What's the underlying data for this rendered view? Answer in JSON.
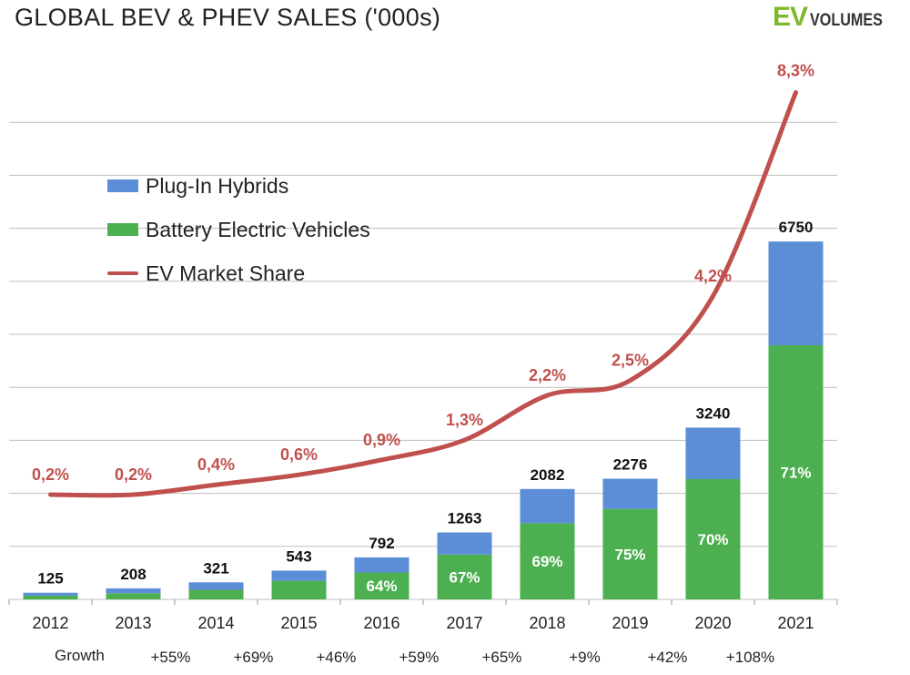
{
  "title": "GLOBAL BEV & PHEV SALES ('000s)",
  "logo": {
    "ev": "EV",
    "volumes": "VOLUMES"
  },
  "colors": {
    "phev": "#5b8ed6",
    "bev": "#4caf50",
    "share": "#c0504d",
    "grid": "#bfbfbf",
    "text": "#111111"
  },
  "legend": [
    {
      "label": "Plug-In Hybrids",
      "kind": "box",
      "color": "#5b8ed6"
    },
    {
      "label": "Battery Electric Vehicles",
      "kind": "box",
      "color": "#4caf50"
    },
    {
      "label": "EV Market Share",
      "kind": "line",
      "color": "#c0504d"
    }
  ],
  "growth_label": "Growth",
  "chart_data": {
    "type": "bar",
    "stacked": true,
    "title": "GLOBAL BEV & PHEV SALES ('000s)",
    "unit": "'000s",
    "categories": [
      "2012",
      "2013",
      "2014",
      "2015",
      "2016",
      "2017",
      "2018",
      "2019",
      "2020",
      "2021"
    ],
    "totals": [
      125,
      208,
      321,
      543,
      792,
      1263,
      2082,
      2276,
      3240,
      6750
    ],
    "total_labels": [
      "125",
      "208",
      "321",
      "543",
      "792",
      "1263",
      "2082",
      "2276",
      "3240",
      "6750"
    ],
    "series": [
      {
        "name": "Battery Electric Vehicles",
        "values": [
          70,
          115,
          180,
          350,
          507,
          846,
          1437,
          1707,
          2268,
          4793
        ]
      },
      {
        "name": "Plug-In Hybrids",
        "values": [
          55,
          93,
          141,
          193,
          285,
          417,
          645,
          569,
          972,
          1957
        ]
      }
    ],
    "bev_share_labels": [
      "",
      "",
      "",
      "",
      "64%",
      "67%",
      "69%",
      "75%",
      "70%",
      "71%"
    ],
    "market_share": {
      "name": "EV Market Share",
      "values": [
        0.2,
        0.2,
        0.4,
        0.6,
        0.9,
        1.3,
        2.2,
        2.5,
        4.2,
        8.3
      ],
      "labels": [
        "0,2%",
        "0,2%",
        "0,4%",
        "0,6%",
        "0,9%",
        "1,3%",
        "2,2%",
        "2,5%",
        "4,2%",
        "8,3%"
      ]
    },
    "growth": [
      "",
      "+55%",
      "+69%",
      "+46%",
      "+59%",
      "+65%",
      "+9%",
      "+42%",
      "+108%",
      ""
    ],
    "ylim": [
      0,
      10000
    ],
    "grid": true,
    "legend_position": "top-left"
  }
}
